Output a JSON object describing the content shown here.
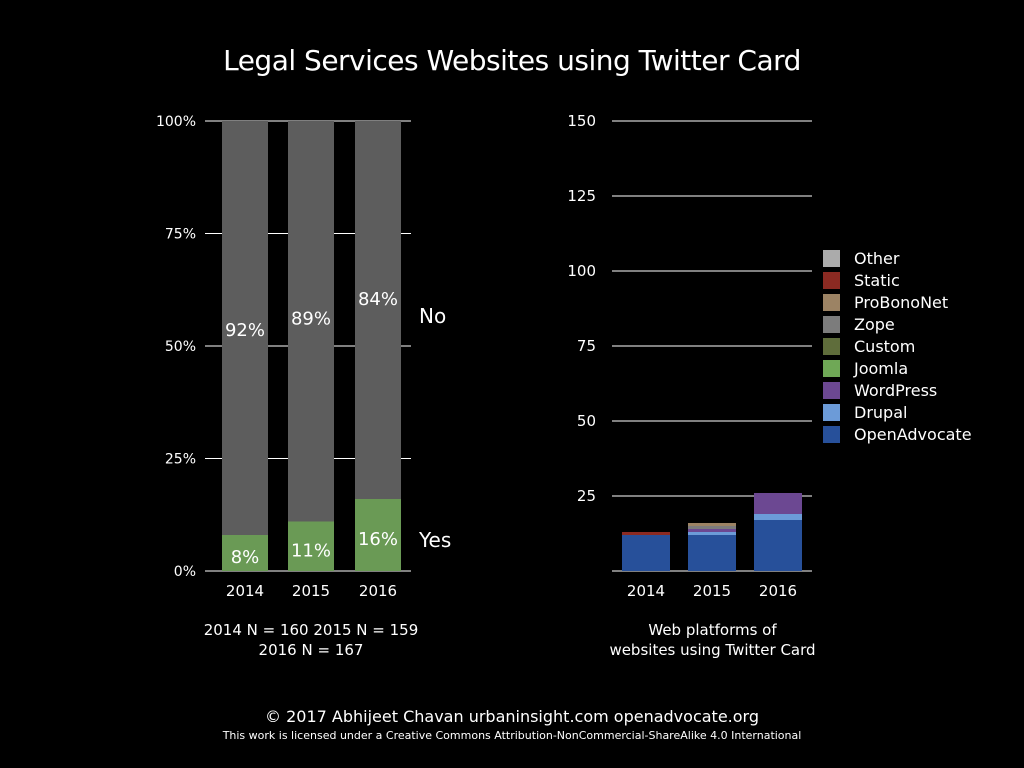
{
  "title": "Legal Services Websites using Twitter Card",
  "chart_data": [
    {
      "type": "bar",
      "stacked": true,
      "normalized": true,
      "categories": [
        "2014",
        "2015",
        "2016"
      ],
      "series": [
        {
          "name": "Yes",
          "values": [
            8,
            11,
            16
          ],
          "labels": [
            "8%",
            "11%",
            "16%"
          ],
          "color": "#6a9a55"
        },
        {
          "name": "No",
          "values": [
            92,
            89,
            84
          ],
          "labels": [
            "92%",
            "89%",
            "84%"
          ],
          "color": "#5d5d5d"
        }
      ],
      "ylim": [
        0,
        100
      ],
      "yticks": [
        "0%",
        "25%",
        "50%",
        "75%",
        "100%"
      ],
      "grid": true,
      "legend": "right-inline",
      "caption": [
        "2014 N = 160  2015 N = 159",
        "2016 N = 167"
      ]
    },
    {
      "type": "bar",
      "stacked": true,
      "categories": [
        "2014",
        "2015",
        "2016"
      ],
      "series": [
        {
          "name": "OpenAdvocate",
          "values": [
            12,
            12,
            17
          ],
          "color": "#27509a"
        },
        {
          "name": "Drupal",
          "values": [
            0,
            1,
            2
          ],
          "color": "#6c9bd8"
        },
        {
          "name": "WordPress",
          "values": [
            0,
            1,
            7
          ],
          "color": "#6c4892"
        },
        {
          "name": "Joomla",
          "values": [
            0,
            0,
            0
          ],
          "color": "#6fa856"
        },
        {
          "name": "Custom",
          "values": [
            0,
            0,
            0
          ],
          "color": "#5f6d3b"
        },
        {
          "name": "Zope",
          "values": [
            0,
            1,
            0
          ],
          "color": "#7c7c7c"
        },
        {
          "name": "ProBonoNet",
          "values": [
            0,
            1,
            0
          ],
          "color": "#9c8364"
        },
        {
          "name": "Static",
          "values": [
            1,
            0,
            0
          ],
          "color": "#8b2a22"
        },
        {
          "name": "Other",
          "values": [
            0,
            0,
            0
          ],
          "color": "#ababab"
        }
      ],
      "ylim": [
        0,
        150
      ],
      "yticks": [
        "25",
        "50",
        "75",
        "100",
        "125",
        "150"
      ],
      "grid": true,
      "legend": "right",
      "caption": [
        "Web platforms of",
        "websites using Twitter Card"
      ]
    }
  ],
  "footer": {
    "line1": "© 2017  Abhijeet Chavan  urbaninsight.com  openadvocate.org",
    "line2": "This work is licensed under a Creative Commons Attribution-NonCommercial-ShareAlike 4.0 International"
  }
}
